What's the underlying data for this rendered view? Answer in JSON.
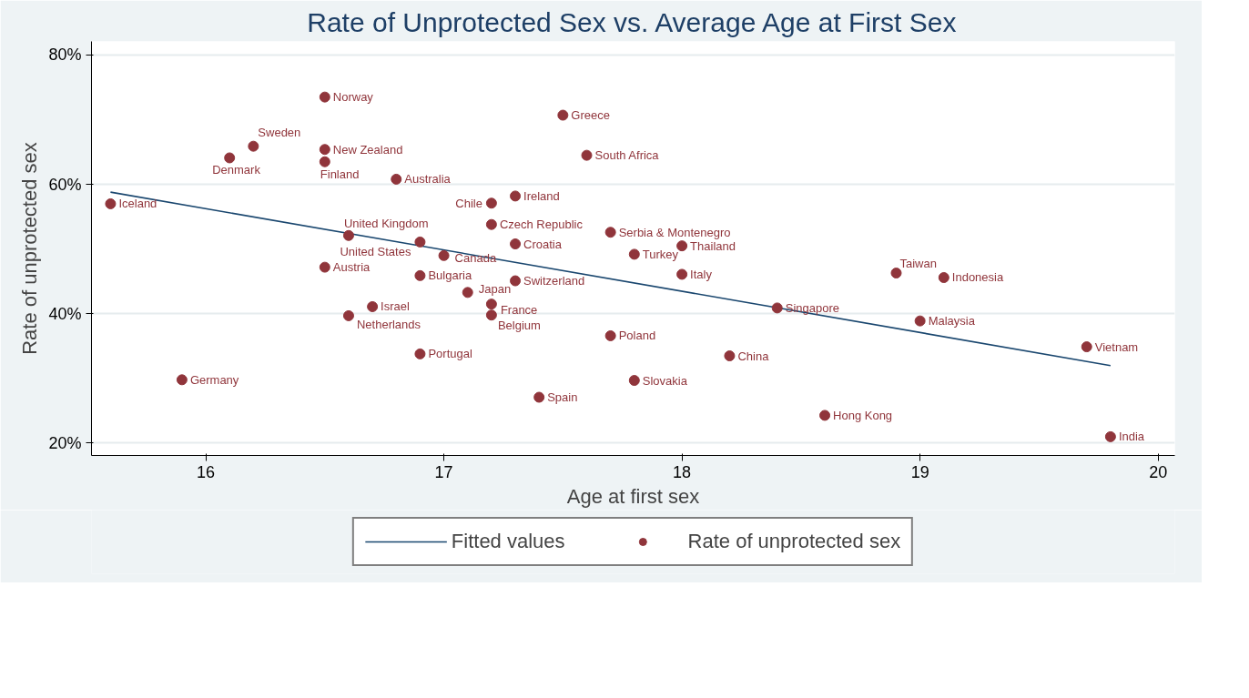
{
  "chart_data": {
    "type": "scatter",
    "title": "Rate of Unprotected Sex vs. Average Age at First Sex",
    "xlabel": "Age at first sex",
    "ylabel": "Rate of unprotected sex",
    "xlim": [
      15.52,
      20.07
    ],
    "xticks": [
      16,
      17,
      18,
      19,
      20
    ],
    "ylim": [
      18.1,
      82.1
    ],
    "yticks": [
      {
        "value": 20,
        "label": "20%"
      },
      {
        "value": 40,
        "label": "40%"
      },
      {
        "value": 60,
        "label": "60%"
      },
      {
        "value": 80,
        "label": "80%"
      }
    ],
    "grid": "y",
    "legend": "bottom",
    "series": [
      {
        "name": "Fitted values",
        "type": "line",
        "color": "#1a476f",
        "x": [
          15.6,
          19.8
        ],
        "values": [
          58.8,
          32.0
        ],
        "line_style": "solid"
      },
      {
        "name": "Rate of unprotected sex",
        "marker": "circle",
        "color": "#90353b",
        "x": [
          15.6,
          15.9,
          16.1,
          16.2,
          16.5,
          16.5,
          16.5,
          16.5,
          16.6,
          16.6,
          16.7,
          16.8,
          16.9,
          16.9,
          16.9,
          17.0,
          17.1,
          17.2,
          17.2,
          17.2,
          17.2,
          17.3,
          17.3,
          17.3,
          17.4,
          17.5,
          17.6,
          17.7,
          17.7,
          17.8,
          17.8,
          18.0,
          18.0,
          18.2,
          18.4,
          18.6,
          18.9,
          19.0,
          19.1,
          19.7,
          19.8
        ],
        "values": [
          57.0,
          29.8,
          64.1,
          65.9,
          73.5,
          65.4,
          63.5,
          47.2,
          52.1,
          39.7,
          41.1,
          60.8,
          51.1,
          45.9,
          33.8,
          49.0,
          43.3,
          57.1,
          53.8,
          41.5,
          39.8,
          58.2,
          50.8,
          45.1,
          27.1,
          70.7,
          64.5,
          52.6,
          36.6,
          49.2,
          29.7,
          50.5,
          46.1,
          33.5,
          40.9,
          24.3,
          46.3,
          38.9,
          45.6,
          34.9,
          21.0
        ]
      }
    ],
    "annotations": [
      {
        "text": "Iceland",
        "x": 15.6,
        "y": 57.0
      },
      {
        "text": "Germany",
        "x": 15.9,
        "y": 29.8
      },
      {
        "text": "Denmark",
        "x": 16.1,
        "y": 64.1
      },
      {
        "text": "Sweden",
        "x": 16.2,
        "y": 65.9
      },
      {
        "text": "Norway",
        "x": 16.5,
        "y": 73.5
      },
      {
        "text": "New Zealand",
        "x": 16.5,
        "y": 65.4
      },
      {
        "text": "Finland",
        "x": 16.5,
        "y": 63.5
      },
      {
        "text": "Austria",
        "x": 16.5,
        "y": 47.2
      },
      {
        "text": "United Kingdom",
        "x": 16.6,
        "y": 52.1
      },
      {
        "text": "Netherlands",
        "x": 16.6,
        "y": 39.7
      },
      {
        "text": "Israel",
        "x": 16.7,
        "y": 41.1
      },
      {
        "text": "Australia",
        "x": 16.8,
        "y": 60.8
      },
      {
        "text": "United States",
        "x": 16.9,
        "y": 51.1
      },
      {
        "text": "Bulgaria",
        "x": 16.9,
        "y": 45.9
      },
      {
        "text": "Portugal",
        "x": 16.9,
        "y": 33.8
      },
      {
        "text": "Canada",
        "x": 17.0,
        "y": 49.0
      },
      {
        "text": "Japan",
        "x": 17.1,
        "y": 43.3
      },
      {
        "text": "Chile",
        "x": 17.2,
        "y": 57.1
      },
      {
        "text": "Czech Republic",
        "x": 17.2,
        "y": 53.8
      },
      {
        "text": "France",
        "x": 17.2,
        "y": 41.5
      },
      {
        "text": "Belgium",
        "x": 17.2,
        "y": 39.8
      },
      {
        "text": "Ireland",
        "x": 17.3,
        "y": 58.2
      },
      {
        "text": "Croatia",
        "x": 17.3,
        "y": 50.8
      },
      {
        "text": "Switzerland",
        "x": 17.3,
        "y": 45.1
      },
      {
        "text": "Spain",
        "x": 17.4,
        "y": 27.1
      },
      {
        "text": "Greece",
        "x": 17.5,
        "y": 70.7
      },
      {
        "text": "South Africa",
        "x": 17.6,
        "y": 64.5
      },
      {
        "text": "Serbia & Montenegro",
        "x": 17.7,
        "y": 52.6
      },
      {
        "text": "Poland",
        "x": 17.7,
        "y": 36.6
      },
      {
        "text": "Turkey",
        "x": 17.8,
        "y": 49.2
      },
      {
        "text": "Slovakia",
        "x": 17.8,
        "y": 29.7
      },
      {
        "text": "Thailand",
        "x": 18.0,
        "y": 50.5
      },
      {
        "text": "Italy",
        "x": 18.0,
        "y": 46.1
      },
      {
        "text": "China",
        "x": 18.2,
        "y": 33.5
      },
      {
        "text": "Singapore",
        "x": 18.4,
        "y": 40.9
      },
      {
        "text": "Hong Kong",
        "x": 18.6,
        "y": 24.3
      },
      {
        "text": "Taiwan",
        "x": 18.9,
        "y": 46.3
      },
      {
        "text": "Malaysia",
        "x": 19.0,
        "y": 38.9
      },
      {
        "text": "Indonesia",
        "x": 19.1,
        "y": 45.6
      },
      {
        "text": "Vietnam",
        "x": 19.7,
        "y": 34.9
      },
      {
        "text": "India",
        "x": 19.8,
        "y": 21.0
      }
    ]
  }
}
